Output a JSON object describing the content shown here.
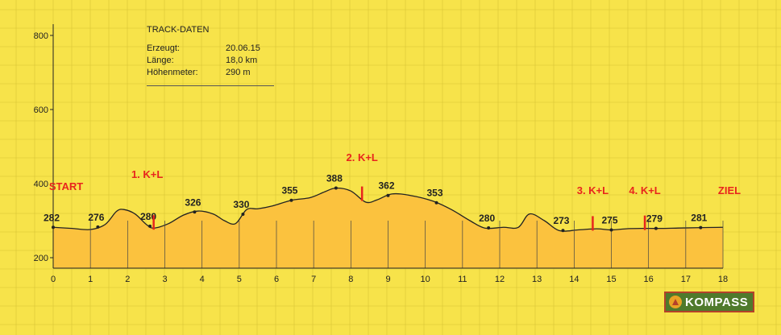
{
  "info_box": {
    "heading": "TRACK-DATEN",
    "rows": [
      {
        "label": "Erzeugt:",
        "value": "20.06.15"
      },
      {
        "label": "Länge:",
        "value": "18,0 km"
      },
      {
        "label": "Höhenmeter:",
        "value": "290 m"
      }
    ]
  },
  "logo": {
    "text": "KOMPASS"
  },
  "chart_data": {
    "type": "area",
    "title": "",
    "xlabel": "",
    "ylabel": "",
    "xlim": [
      0,
      18
    ],
    "ylim": [
      180,
      820
    ],
    "x_ticks": [
      "0",
      "1",
      "2",
      "3",
      "4",
      "5",
      "6",
      "7",
      "8",
      "9",
      "10",
      "11",
      "12",
      "13",
      "14",
      "15",
      "16",
      "17",
      "18"
    ],
    "y_ticks": [
      "200",
      "400",
      "600",
      "800"
    ],
    "grid": true,
    "profile": {
      "x": [
        0,
        0.5,
        1.0,
        1.4,
        1.7,
        1.9,
        2.2,
        2.5,
        2.7,
        3.1,
        3.5,
        3.9,
        4.3,
        4.6,
        4.9,
        5.2,
        5.5,
        5.9,
        6.4,
        6.9,
        7.3,
        7.6,
        8.0,
        8.4,
        8.7,
        9.1,
        9.6,
        10.2,
        10.7,
        11.2,
        11.6,
        12.1,
        12.5,
        12.8,
        13.2,
        13.6,
        14.1,
        14.6,
        15.0,
        15.4,
        15.8,
        16.3,
        16.8,
        17.3,
        18.0
      ],
      "y": [
        282,
        279,
        276,
        290,
        325,
        330,
        318,
        290,
        280,
        292,
        315,
        326,
        318,
        300,
        292,
        330,
        332,
        340,
        355,
        362,
        378,
        388,
        380,
        350,
        356,
        372,
        368,
        353,
        330,
        300,
        280,
        282,
        282,
        318,
        300,
        273,
        275,
        278,
        275,
        278,
        279,
        279,
        280,
        281,
        282
      ]
    },
    "elevation_labels": [
      {
        "km": 0.0,
        "m": 282
      },
      {
        "km": 1.2,
        "m": 276
      },
      {
        "km": 2.6,
        "m": 280
      },
      {
        "km": 3.8,
        "m": 326
      },
      {
        "km": 5.1,
        "m": 330
      },
      {
        "km": 6.4,
        "m": 355
      },
      {
        "km": 7.6,
        "m": 388
      },
      {
        "km": 9.0,
        "m": 362
      },
      {
        "km": 10.3,
        "m": 353
      },
      {
        "km": 11.7,
        "m": 280
      },
      {
        "km": 13.7,
        "m": 273
      },
      {
        "km": 15.0,
        "m": 275
      },
      {
        "km": 16.2,
        "m": 279
      },
      {
        "km": 17.4,
        "m": 281
      }
    ],
    "markers": [
      {
        "label": "START",
        "km": 0
      },
      {
        "label": "1. K+L",
        "km": 2.7
      },
      {
        "label": "2. K+L",
        "km": 8.3
      },
      {
        "label": "3. K+L",
        "km": 14.5
      },
      {
        "label": "4. K+L",
        "km": 15.9
      },
      {
        "label": "ZIEL",
        "km": 18
      }
    ],
    "colors": {
      "background": "#f7e34a",
      "fill": "#fbc23e",
      "line": "#222222",
      "grid": "#d7c335",
      "marker": "#e8251d"
    }
  }
}
